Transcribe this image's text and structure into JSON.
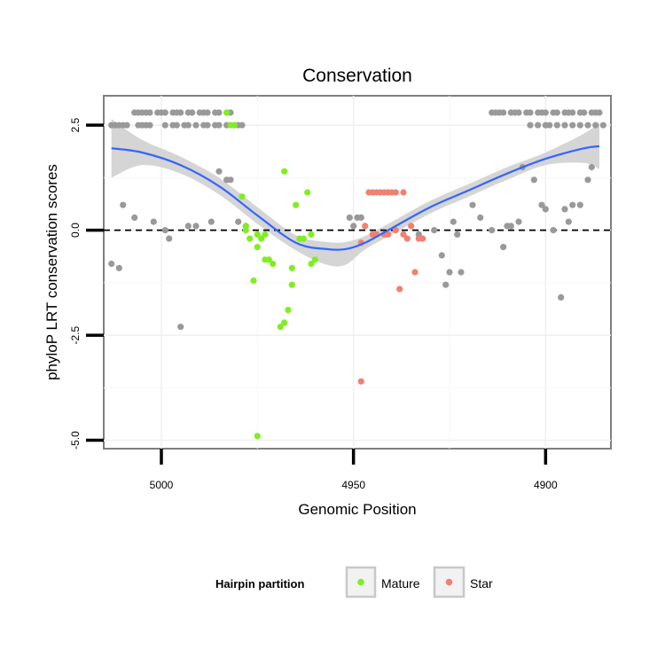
{
  "chart_data": {
    "type": "scatter",
    "title": "Conservation",
    "xlabel": "Genomic Position",
    "ylabel": "phyloP LRT conservation scores",
    "x_reversed": true,
    "xlim": [
      5015,
      4883
    ],
    "ylim": [
      -5.2,
      3.2
    ],
    "x_ticks": [
      5000,
      4950,
      4900
    ],
    "y_ticks": [
      2.5,
      0.0,
      -2.5,
      -5.0
    ],
    "x_tick_labels": [
      "5000",
      "4950",
      "4900"
    ],
    "y_tick_labels": [
      "2.5",
      "0.0",
      "-2.5",
      "-5.0"
    ],
    "reference_line": {
      "y": 0.0,
      "style": "dashed"
    },
    "colors": {
      "Other": "#999999",
      "Mature": "#7FEE22",
      "Star": "#F08070",
      "smooth": "#3366FF",
      "band": "#D0D0D0"
    },
    "legend": {
      "title": "Hairpin partition",
      "position": "bottom",
      "entries": [
        {
          "label": "Mature",
          "color": "#7FEE22"
        },
        {
          "label": "Star",
          "color": "#F08070"
        }
      ]
    },
    "series": [
      {
        "name": "Other",
        "points": [
          [
            5013,
            2.5
          ],
          [
            5012,
            2.5
          ],
          [
            5011,
            2.5
          ],
          [
            5010,
            2.5
          ],
          [
            5009,
            2.5
          ],
          [
            5007,
            2.8
          ],
          [
            5006,
            2.8
          ],
          [
            5005,
            2.8
          ],
          [
            5004,
            2.8
          ],
          [
            5003,
            2.8
          ],
          [
            5006,
            2.5
          ],
          [
            5005,
            2.5
          ],
          [
            5004,
            2.5
          ],
          [
            5003,
            2.5
          ],
          [
            5001,
            2.8
          ],
          [
            5000,
            2.8
          ],
          [
            4999,
            2.8
          ],
          [
            4997,
            2.8
          ],
          [
            4996,
            2.8
          ],
          [
            4995,
            2.8
          ],
          [
            4993,
            2.8
          ],
          [
            4992,
            2.8
          ],
          [
            4990,
            2.8
          ],
          [
            4989,
            2.8
          ],
          [
            4988,
            2.8
          ],
          [
            4986,
            2.8
          ],
          [
            4985,
            2.8
          ],
          [
            4983,
            2.8
          ],
          [
            4982,
            2.8
          ],
          [
            4999,
            2.5
          ],
          [
            4997,
            2.5
          ],
          [
            4996,
            2.5
          ],
          [
            4994,
            2.5
          ],
          [
            4993,
            2.5
          ],
          [
            4991,
            2.5
          ],
          [
            4989,
            2.5
          ],
          [
            4988,
            2.5
          ],
          [
            4986,
            2.5
          ],
          [
            4985,
            2.5
          ],
          [
            4983,
            2.5
          ],
          [
            4981,
            2.5
          ],
          [
            4980,
            2.5
          ],
          [
            4979,
            2.5
          ],
          [
            4914,
            2.8
          ],
          [
            4913,
            2.8
          ],
          [
            4912,
            2.8
          ],
          [
            4911,
            2.8
          ],
          [
            4909,
            2.8
          ],
          [
            4908,
            2.8
          ],
          [
            4907,
            2.8
          ],
          [
            4905,
            2.8
          ],
          [
            4904,
            2.8
          ],
          [
            4902,
            2.8
          ],
          [
            4901,
            2.8
          ],
          [
            4900,
            2.8
          ],
          [
            4898,
            2.8
          ],
          [
            4897,
            2.8
          ],
          [
            4895,
            2.8
          ],
          [
            4894,
            2.8
          ],
          [
            4893,
            2.8
          ],
          [
            4891,
            2.8
          ],
          [
            4890,
            2.8
          ],
          [
            4888,
            2.8
          ],
          [
            4887,
            2.8
          ],
          [
            4886,
            2.8
          ],
          [
            4904,
            2.5
          ],
          [
            4902,
            2.5
          ],
          [
            4900,
            2.5
          ],
          [
            4899,
            2.5
          ],
          [
            4897,
            2.5
          ],
          [
            4895,
            2.5
          ],
          [
            4893,
            2.5
          ],
          [
            4891,
            2.5
          ],
          [
            4889,
            2.5
          ],
          [
            4887,
            2.5
          ],
          [
            4885,
            2.5
          ],
          [
            5010,
            0.6
          ],
          [
            5007,
            0.3
          ],
          [
            5002,
            0.2
          ],
          [
            4999,
            0.0
          ],
          [
            4998,
            -0.2
          ],
          [
            4995,
            -2.3
          ],
          [
            4993,
            0.1
          ],
          [
            4991,
            0.1
          ],
          [
            4987,
            0.2
          ],
          [
            4985,
            1.4
          ],
          [
            4983,
            1.2
          ],
          [
            4982,
            1.2
          ],
          [
            4980,
            0.2
          ],
          [
            4978,
            0.1
          ],
          [
            4948,
            0.3
          ],
          [
            4949,
            0.3
          ],
          [
            4950,
            0.1
          ],
          [
            4951,
            0.3
          ],
          [
            4933,
            -0.1
          ],
          [
            4929,
            0.0
          ],
          [
            4927,
            -0.6
          ],
          [
            4926,
            -1.3
          ],
          [
            4925,
            -1.0
          ],
          [
            4924,
            0.2
          ],
          [
            4923,
            -0.1
          ],
          [
            4922,
            -1.0
          ],
          [
            4919,
            0.6
          ],
          [
            4917,
            0.3
          ],
          [
            4914,
            0.0
          ],
          [
            4911,
            -0.4
          ],
          [
            4910,
            0.1
          ],
          [
            4909,
            0.1
          ],
          [
            4907,
            0.2
          ],
          [
            4906,
            1.5
          ],
          [
            4903,
            1.2
          ],
          [
            4901,
            0.6
          ],
          [
            4900,
            0.5
          ],
          [
            4898,
            0.0
          ],
          [
            4896,
            -1.6
          ],
          [
            4895,
            0.5
          ],
          [
            4894,
            0.2
          ],
          [
            4893,
            0.6
          ],
          [
            4891,
            0.6
          ],
          [
            4889,
            1.2
          ],
          [
            4888,
            1.5
          ],
          [
            5013,
            -0.8
          ],
          [
            5011,
            -0.9
          ]
        ]
      },
      {
        "name": "Mature",
        "points": [
          [
            4983,
            2.8
          ],
          [
            4981,
            2.5
          ],
          [
            4982,
            2.5
          ],
          [
            4979,
            0.8
          ],
          [
            4978,
            0.1
          ],
          [
            4977,
            -0.2
          ],
          [
            4975,
            -0.1
          ],
          [
            4974,
            -0.2
          ],
          [
            4975,
            -0.4
          ],
          [
            4973,
            -0.7
          ],
          [
            4972,
            -0.7
          ],
          [
            4971,
            -0.8
          ],
          [
            4969,
            -2.3
          ],
          [
            4968,
            -2.2
          ],
          [
            4967,
            -1.9
          ],
          [
            4966,
            -1.3
          ],
          [
            4966,
            -0.9
          ],
          [
            4964,
            -0.2
          ],
          [
            4963,
            -0.2
          ],
          [
            4962,
            0.9
          ],
          [
            4961,
            -0.8
          ],
          [
            4960,
            -0.7
          ],
          [
            4965,
            0.6
          ],
          [
            4961,
            -0.1
          ],
          [
            4968,
            1.4
          ],
          [
            4973,
            -0.1
          ],
          [
            4975,
            -4.9
          ],
          [
            4976,
            -1.2
          ],
          [
            4978,
            0.0
          ]
        ]
      },
      {
        "name": "Star",
        "points": [
          [
            4947,
            0.1
          ],
          [
            4946,
            0.9
          ],
          [
            4945,
            0.9
          ],
          [
            4944,
            0.9
          ],
          [
            4943,
            0.9
          ],
          [
            4942,
            0.9
          ],
          [
            4941,
            0.9
          ],
          [
            4940,
            0.9
          ],
          [
            4939,
            0.9
          ],
          [
            4937,
            0.9
          ],
          [
            4945,
            -0.1
          ],
          [
            4944,
            -0.1
          ],
          [
            4942,
            -0.1
          ],
          [
            4941,
            -0.1
          ],
          [
            4939,
            0.0
          ],
          [
            4937,
            -0.1
          ],
          [
            4936,
            -0.2
          ],
          [
            4935,
            0.1
          ],
          [
            4933,
            -0.2
          ],
          [
            4932,
            -0.2
          ],
          [
            4934,
            -1.0
          ],
          [
            4938,
            -1.4
          ],
          [
            4948,
            -3.6
          ],
          [
            4948,
            -0.3
          ]
        ]
      }
    ],
    "smooth": {
      "x": [
        5013,
        5005,
        4995,
        4985,
        4975,
        4965,
        4957,
        4952,
        4947,
        4940,
        4930,
        4920,
        4910,
        4900,
        4890,
        4886
      ],
      "y": [
        1.95,
        1.85,
        1.55,
        1.05,
        0.35,
        -0.3,
        -0.45,
        -0.45,
        -0.3,
        0.05,
        0.55,
        0.95,
        1.35,
        1.7,
        1.95,
        2.0
      ],
      "upper": [
        2.65,
        2.15,
        1.75,
        1.25,
        0.55,
        -0.12,
        -0.28,
        -0.28,
        -0.14,
        0.2,
        0.7,
        1.1,
        1.5,
        1.85,
        2.3,
        2.55
      ],
      "lower": [
        1.25,
        1.55,
        1.35,
        0.85,
        0.15,
        -0.48,
        -0.82,
        -0.82,
        -0.46,
        -0.1,
        0.4,
        0.8,
        1.2,
        1.55,
        1.6,
        1.45
      ]
    }
  }
}
